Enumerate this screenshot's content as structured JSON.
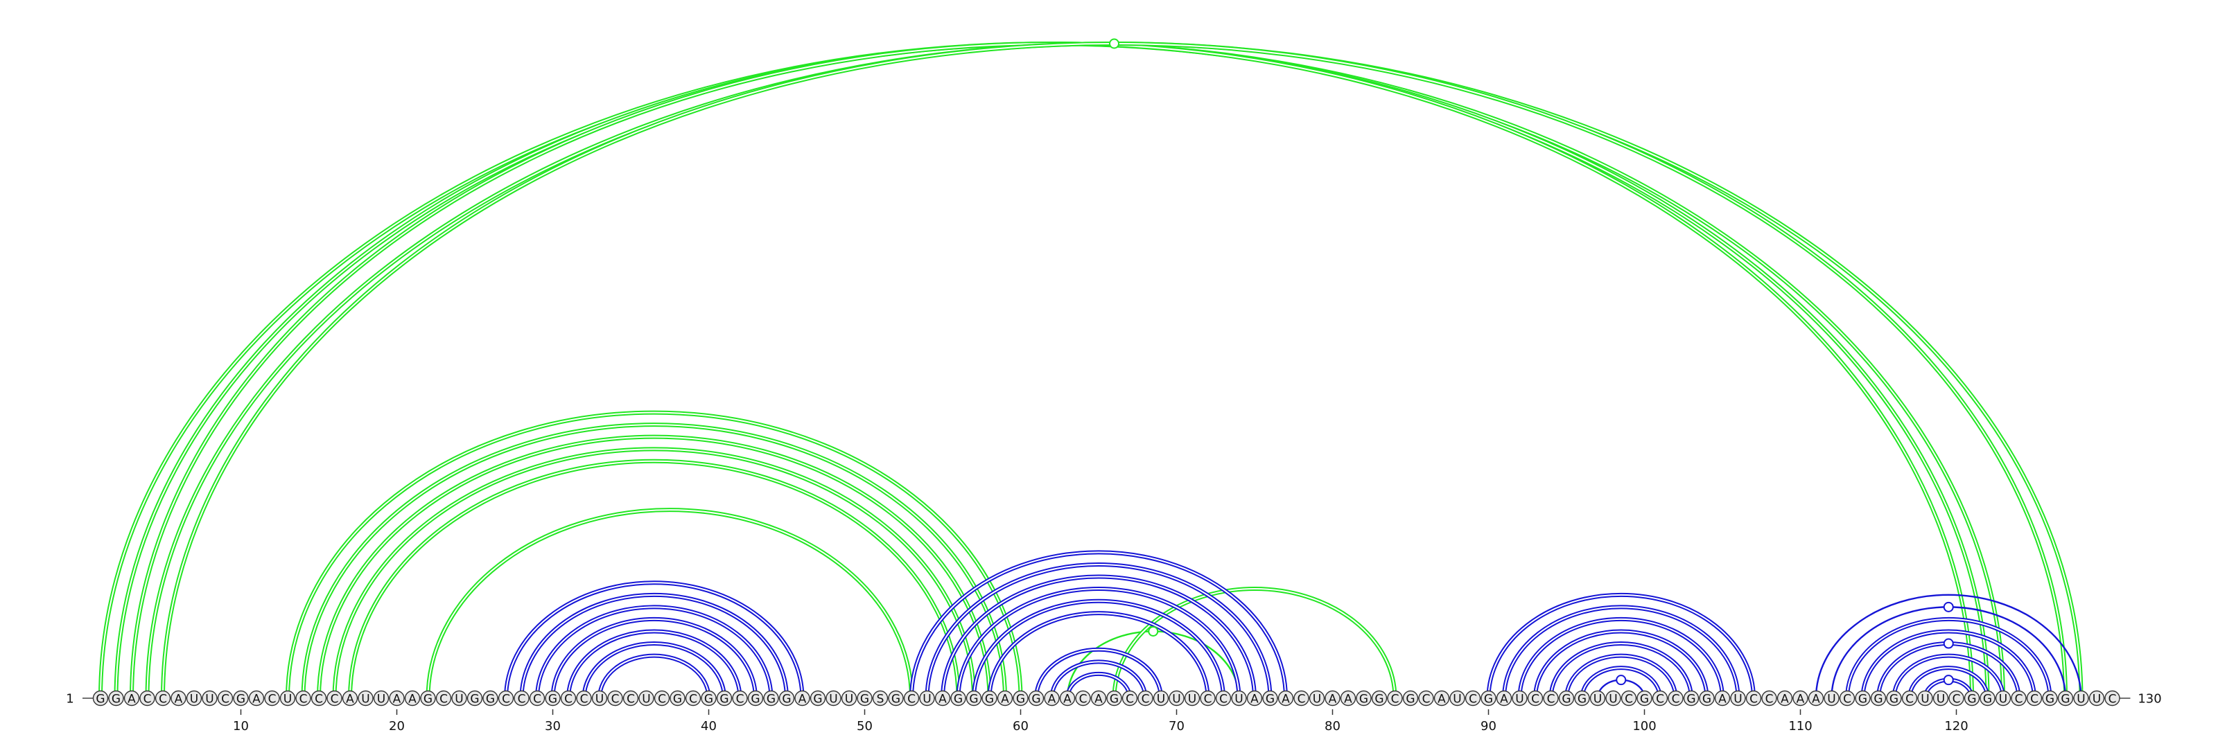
{
  "diagram": {
    "sequence": "GGACCAUUCGACUCCCAUUAAGCUGGCCCGCCUCCUCGCGGCGGGAGUUGSGCUAGGGAGGAACAGCCUUUCCUAGACUAAGGCGCAUCGAUCCGGUUCGCCGGAUCCAAAUCGGGCUUCGGUCCGGUUC",
    "start_label": "1",
    "end_label": "130",
    "tick_labels": [
      "10",
      "20",
      "30",
      "40",
      "50",
      "60",
      "70",
      "80",
      "90",
      "100",
      "110",
      "120"
    ],
    "colors": {
      "green": "#22e622",
      "blue": "#1515d6",
      "nucleotide_fill": "#e8e8e8",
      "nucleotide_stroke": "#333333",
      "text": "#111111"
    },
    "arcs": [
      {
        "i": 1,
        "j": 123,
        "color": "green",
        "style": "double"
      },
      {
        "i": 2,
        "j": 122,
        "color": "green",
        "style": "double"
      },
      {
        "i": 3,
        "j": 121,
        "color": "green",
        "style": "double"
      },
      {
        "i": 4,
        "j": 128,
        "color": "green",
        "style": "double",
        "marker": true
      },
      {
        "i": 5,
        "j": 127,
        "color": "green",
        "style": "double"
      },
      {
        "i": 13,
        "j": 60,
        "color": "green",
        "style": "double"
      },
      {
        "i": 14,
        "j": 59,
        "color": "green",
        "style": "double"
      },
      {
        "i": 15,
        "j": 58,
        "color": "green",
        "style": "double"
      },
      {
        "i": 16,
        "j": 57,
        "color": "green",
        "style": "double"
      },
      {
        "i": 17,
        "j": 56,
        "color": "green",
        "style": "double"
      },
      {
        "i": 22,
        "j": 53,
        "color": "green",
        "style": "double"
      },
      {
        "i": 63,
        "j": 74,
        "color": "green",
        "style": "single",
        "marker": true
      },
      {
        "i": 66,
        "j": 84,
        "color": "green",
        "style": "double"
      },
      {
        "i": 27,
        "j": 46,
        "color": "blue",
        "style": "double"
      },
      {
        "i": 28,
        "j": 45,
        "color": "blue",
        "style": "double"
      },
      {
        "i": 29,
        "j": 44,
        "color": "blue",
        "style": "double"
      },
      {
        "i": 30,
        "j": 43,
        "color": "blue",
        "style": "double"
      },
      {
        "i": 31,
        "j": 42,
        "color": "blue",
        "style": "double"
      },
      {
        "i": 32,
        "j": 41,
        "color": "blue",
        "style": "double"
      },
      {
        "i": 33,
        "j": 40,
        "color": "blue",
        "style": "double"
      },
      {
        "i": 53,
        "j": 77,
        "color": "blue",
        "style": "double"
      },
      {
        "i": 54,
        "j": 76,
        "color": "blue",
        "style": "double"
      },
      {
        "i": 55,
        "j": 75,
        "color": "blue",
        "style": "double"
      },
      {
        "i": 56,
        "j": 74,
        "color": "blue",
        "style": "double"
      },
      {
        "i": 57,
        "j": 73,
        "color": "blue",
        "style": "double"
      },
      {
        "i": 58,
        "j": 72,
        "color": "blue",
        "style": "double"
      },
      {
        "i": 61,
        "j": 69,
        "color": "blue",
        "style": "double"
      },
      {
        "i": 62,
        "j": 68,
        "color": "blue",
        "style": "double"
      },
      {
        "i": 63,
        "j": 67,
        "color": "blue",
        "style": "double"
      },
      {
        "i": 90,
        "j": 107,
        "color": "blue",
        "style": "double"
      },
      {
        "i": 91,
        "j": 106,
        "color": "blue",
        "style": "double"
      },
      {
        "i": 92,
        "j": 105,
        "color": "blue",
        "style": "double"
      },
      {
        "i": 93,
        "j": 104,
        "color": "blue",
        "style": "double"
      },
      {
        "i": 94,
        "j": 103,
        "color": "blue",
        "style": "double"
      },
      {
        "i": 95,
        "j": 102,
        "color": "blue",
        "style": "double"
      },
      {
        "i": 96,
        "j": 101,
        "color": "blue",
        "style": "double"
      },
      {
        "i": 97,
        "j": 100,
        "color": "blue",
        "style": "single",
        "marker": true
      },
      {
        "i": 111,
        "j": 128,
        "color": "blue",
        "style": "single"
      },
      {
        "i": 112,
        "j": 127,
        "color": "blue",
        "style": "single",
        "marker": true
      },
      {
        "i": 113,
        "j": 126,
        "color": "blue",
        "style": "double"
      },
      {
        "i": 114,
        "j": 125,
        "color": "blue",
        "style": "double"
      },
      {
        "i": 115,
        "j": 124,
        "color": "blue",
        "style": "double",
        "marker": true
      },
      {
        "i": 116,
        "j": 123,
        "color": "blue",
        "style": "double"
      },
      {
        "i": 117,
        "j": 122,
        "color": "blue",
        "style": "double"
      },
      {
        "i": 118,
        "j": 121,
        "color": "blue",
        "style": "double",
        "marker": true
      }
    ]
  }
}
